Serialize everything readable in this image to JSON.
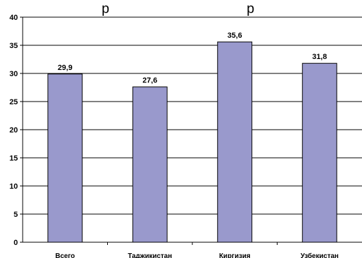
{
  "chart_data": {
    "type": "bar",
    "categories": [
      "Всего",
      "Таджикистан",
      "Киргизия",
      "Узбекистан"
    ],
    "values": [
      29.9,
      27.6,
      35.6,
      31.8
    ],
    "value_labels": [
      "29,9",
      "27,6",
      "35,6",
      "31,8"
    ],
    "ylim": [
      0,
      40
    ],
    "yticks": [
      "0",
      "5",
      "10",
      "15",
      "20",
      "25",
      "30",
      "35",
      "40"
    ],
    "ytick_values": [
      0,
      5,
      10,
      15,
      20,
      25,
      30,
      35,
      40
    ],
    "grid": true,
    "title_fragment": "р                                    р",
    "bar_color": "#9999cc"
  }
}
